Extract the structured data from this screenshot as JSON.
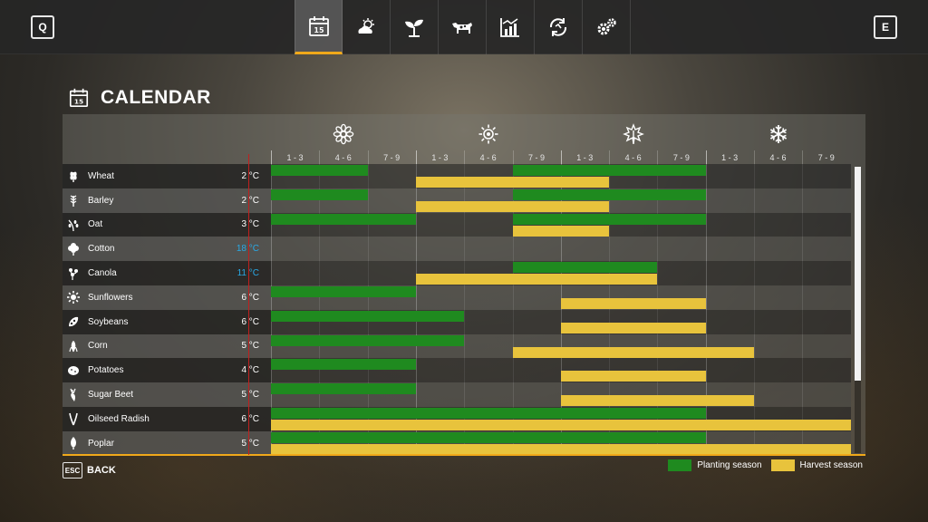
{
  "header": {
    "left_key": "Q",
    "right_key": "E",
    "tabs": [
      {
        "icon": "calendar-icon",
        "active": true
      },
      {
        "icon": "weather-icon",
        "active": false
      },
      {
        "icon": "plant-icon",
        "active": false
      },
      {
        "icon": "cow-icon",
        "active": false
      },
      {
        "icon": "stats-icon",
        "active": false
      },
      {
        "icon": "cycle-icon",
        "active": false
      },
      {
        "icon": "gears-icon",
        "active": false
      }
    ],
    "calendar_day": "15"
  },
  "page": {
    "title": "CALENDAR"
  },
  "seasons": [
    {
      "icon": "spring-flower-icon"
    },
    {
      "icon": "summer-sun-icon"
    },
    {
      "icon": "autumn-leaf-icon"
    },
    {
      "icon": "winter-snowflake-icon"
    }
  ],
  "periods": [
    "1 - 3",
    "4 - 6",
    "7 - 9",
    "1 - 3",
    "4 - 6",
    "7 - 9",
    "1 - 3",
    "4 - 6",
    "7 - 9",
    "1 - 3",
    "4 - 6",
    "7 - 9"
  ],
  "crops": [
    {
      "name": "Wheat",
      "temp": "2 °C",
      "hot": false,
      "icon": "wheat-icon",
      "plant": [
        [
          0,
          2
        ],
        [
          5,
          9
        ]
      ],
      "harvest": [
        [
          3,
          7
        ]
      ]
    },
    {
      "name": "Barley",
      "temp": "2 °C",
      "hot": false,
      "icon": "barley-icon",
      "plant": [
        [
          0,
          2
        ],
        [
          5,
          9
        ]
      ],
      "harvest": [
        [
          3,
          7
        ]
      ]
    },
    {
      "name": "Oat",
      "temp": "3 °C",
      "hot": false,
      "icon": "oat-icon",
      "plant": [
        [
          0,
          3
        ],
        [
          5,
          9
        ]
      ],
      "harvest": [
        [
          5,
          7
        ]
      ]
    },
    {
      "name": "Cotton",
      "temp": "18 °C",
      "hot": true,
      "icon": "cotton-icon",
      "plant": [],
      "harvest": []
    },
    {
      "name": "Canola",
      "temp": "11 °C",
      "hot": true,
      "icon": "canola-icon",
      "plant": [
        [
          5,
          8
        ]
      ],
      "harvest": [
        [
          3,
          8
        ]
      ]
    },
    {
      "name": "Sunflowers",
      "temp": "6 °C",
      "hot": false,
      "icon": "sunflower-icon",
      "plant": [
        [
          0,
          3
        ]
      ],
      "harvest": [
        [
          6,
          9
        ]
      ]
    },
    {
      "name": "Soybeans",
      "temp": "6 °C",
      "hot": false,
      "icon": "soybean-icon",
      "plant": [
        [
          0,
          4
        ]
      ],
      "harvest": [
        [
          6,
          9
        ]
      ]
    },
    {
      "name": "Corn",
      "temp": "5 °C",
      "hot": false,
      "icon": "corn-icon",
      "plant": [
        [
          0,
          4
        ]
      ],
      "harvest": [
        [
          5,
          10
        ]
      ]
    },
    {
      "name": "Potatoes",
      "temp": "4 °C",
      "hot": false,
      "icon": "potato-icon",
      "plant": [
        [
          0,
          3
        ]
      ],
      "harvest": [
        [
          6,
          9
        ]
      ]
    },
    {
      "name": "Sugar Beet",
      "temp": "5 °C",
      "hot": false,
      "icon": "sugarbeet-icon",
      "plant": [
        [
          0,
          3
        ]
      ],
      "harvest": [
        [
          6,
          10
        ]
      ]
    },
    {
      "name": "Oilseed Radish",
      "temp": "6 °C",
      "hot": false,
      "icon": "radish-icon",
      "plant": [
        [
          0,
          9
        ]
      ],
      "harvest": [
        [
          0,
          12
        ]
      ]
    },
    {
      "name": "Poplar",
      "temp": "5 °C",
      "hot": false,
      "icon": "poplar-icon",
      "plant": [
        [
          0,
          9
        ]
      ],
      "harvest": [
        [
          0,
          12
        ]
      ]
    }
  ],
  "colors": {
    "plant": "#1f8a1f",
    "harvest": "#e8c33c",
    "accent": "#f0a81a",
    "hot_temp": "#29a9e6",
    "today": "#c0201e"
  },
  "footer": {
    "esc_key": "ESC",
    "back_label": "BACK",
    "legend_plant": "Planting season",
    "legend_harvest": "Harvest season"
  }
}
